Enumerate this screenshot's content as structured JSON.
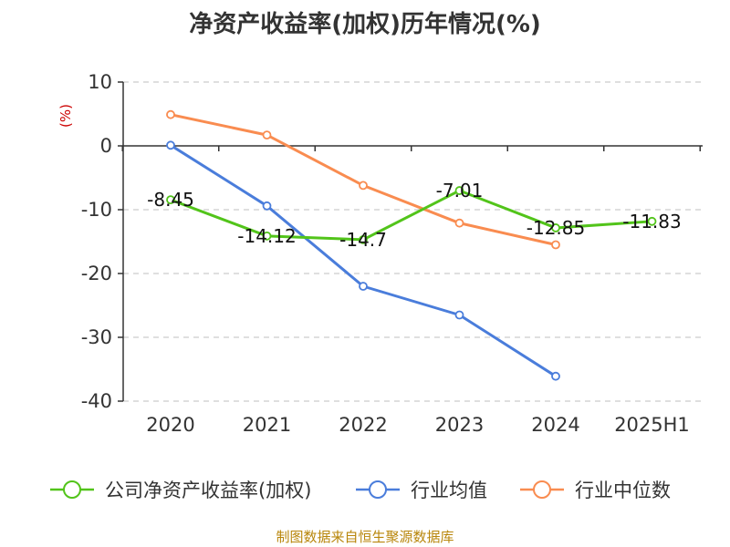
{
  "title": "净资产收益率(加权)历年情况(%)",
  "source": "制图数据来自恒生聚源数据库",
  "chart_data": {
    "type": "line",
    "title": "净资产收益率(加权)历年情况(%)",
    "ylabel": "(%)",
    "xlabel": "",
    "categories": [
      "2020",
      "2021",
      "2022",
      "2023",
      "2024",
      "2025H1"
    ],
    "ylim": [
      -40,
      10
    ],
    "yticks": [
      10,
      0,
      -10,
      -20,
      -30,
      -40
    ],
    "grid": true,
    "legend_position": "bottom",
    "series": [
      {
        "name": "公司净资产收益率(加权)",
        "color": "#52c41a",
        "values": [
          -8.45,
          -14.12,
          -14.7,
          -7.01,
          -12.85,
          -11.83
        ],
        "labels": [
          "-8.45",
          "-14.12",
          "-14.7",
          "-7.01",
          "-12.85",
          "-11.83"
        ]
      },
      {
        "name": "行业均值",
        "color": "#4a7ddb",
        "values": [
          0.1,
          -9.4,
          -22.0,
          -26.5,
          -36.1,
          null
        ],
        "labels": null
      },
      {
        "name": "行业中位数",
        "color": "#f98c50",
        "values": [
          4.9,
          1.7,
          -6.2,
          -12.1,
          -15.5,
          null
        ],
        "labels": null
      }
    ]
  }
}
